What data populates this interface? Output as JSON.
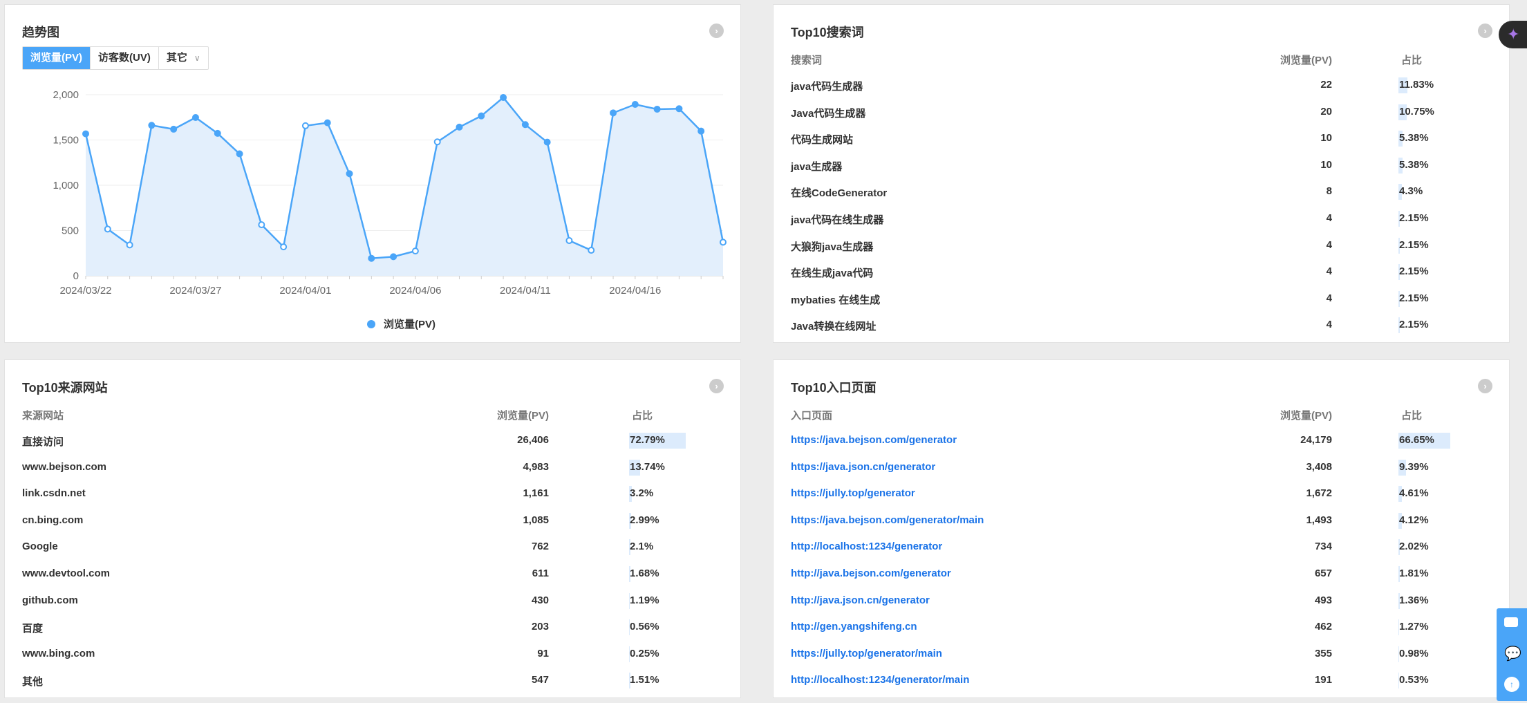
{
  "trend": {
    "title": "趋势图",
    "tabs": [
      {
        "label": "浏览量(PV)",
        "active": true
      },
      {
        "label": "访客数(UV)",
        "active": false
      },
      {
        "label": "其它",
        "active": false
      }
    ],
    "more_icon": "chevron-right-icon"
  },
  "chart_data": {
    "type": "area",
    "title": "",
    "xlabel": "",
    "ylabel": "",
    "ylim": [
      0,
      2000
    ],
    "yticks": [
      "0",
      "500",
      "1,000",
      "1,500",
      "2,000"
    ],
    "ytick_values": [
      0,
      500,
      1000,
      1500,
      2000
    ],
    "xtick_labels": [
      "2024/03/22",
      "2024/03/27",
      "2024/04/01",
      "2024/04/06",
      "2024/04/11",
      "2024/04/16"
    ],
    "grid": true,
    "legend_position": "bottom",
    "color": "#4aa5f8",
    "series": [
      {
        "name": "浏览量(PV)",
        "x": [
          "2024/03/22",
          "2024/03/23",
          "2024/03/24",
          "2024/03/25",
          "2024/03/26",
          "2024/03/27",
          "2024/03/28",
          "2024/03/29",
          "2024/03/30",
          "2024/03/31",
          "2024/04/01",
          "2024/04/02",
          "2024/04/03",
          "2024/04/04",
          "2024/04/05",
          "2024/04/06",
          "2024/04/07",
          "2024/04/08",
          "2024/04/09",
          "2024/04/10",
          "2024/04/11",
          "2024/04/12",
          "2024/04/13",
          "2024/04/14",
          "2024/04/15",
          "2024/04/16",
          "2024/04/17",
          "2024/04/18",
          "2024/04/19",
          "2024/04/20"
        ],
        "values": [
          1568,
          516,
          341,
          1662,
          1619,
          1748,
          1573,
          1347,
          564,
          320,
          1657,
          1690,
          1128,
          193,
          211,
          274,
          1479,
          1642,
          1766,
          1969,
          1670,
          1476,
          389,
          282,
          1799,
          1893,
          1840,
          1845,
          1598,
          371
        ],
        "hollow_markers": [
          "2024/03/23",
          "2024/03/24",
          "2024/03/30",
          "2024/03/31",
          "2024/04/01",
          "2024/04/06",
          "2024/04/07",
          "2024/04/13",
          "2024/04/14",
          "2024/04/20"
        ]
      }
    ]
  },
  "search_words": {
    "title": "Top10搜索词",
    "headers": {
      "name": "搜索词",
      "pv": "浏览量(PV)",
      "pct": "占比"
    },
    "rows": [
      {
        "name": "java代码生成器",
        "pv": "22",
        "pct": "11.83%",
        "pct_value": 11.83
      },
      {
        "name": "Java代码生成器",
        "pv": "20",
        "pct": "10.75%",
        "pct_value": 10.75
      },
      {
        "name": "代码生成网站",
        "pv": "10",
        "pct": "5.38%",
        "pct_value": 5.38
      },
      {
        "name": "java生成器",
        "pv": "10",
        "pct": "5.38%",
        "pct_value": 5.38
      },
      {
        "name": "在线CodeGenerator",
        "pv": "8",
        "pct": "4.3%",
        "pct_value": 4.3
      },
      {
        "name": "java代码在线生成器",
        "pv": "4",
        "pct": "2.15%",
        "pct_value": 2.15
      },
      {
        "name": "大狼狗java生成器",
        "pv": "4",
        "pct": "2.15%",
        "pct_value": 2.15
      },
      {
        "name": "在线生成java代码",
        "pv": "4",
        "pct": "2.15%",
        "pct_value": 2.15
      },
      {
        "name": "mybaties 在线生成",
        "pv": "4",
        "pct": "2.15%",
        "pct_value": 2.15
      },
      {
        "name": "Java转换在线网址",
        "pv": "4",
        "pct": "2.15%",
        "pct_value": 2.15
      }
    ]
  },
  "source_sites": {
    "title": "Top10来源网站",
    "headers": {
      "name": "来源网站",
      "pv": "浏览量(PV)",
      "pct": "占比"
    },
    "rows": [
      {
        "name": "直接访问",
        "pv": "26,406",
        "pct": "72.79%",
        "pct_value": 72.79
      },
      {
        "name": "www.bejson.com",
        "pv": "4,983",
        "pct": "13.74%",
        "pct_value": 13.74
      },
      {
        "name": "link.csdn.net",
        "pv": "1,161",
        "pct": "3.2%",
        "pct_value": 3.2
      },
      {
        "name": "cn.bing.com",
        "pv": "1,085",
        "pct": "2.99%",
        "pct_value": 2.99
      },
      {
        "name": "Google",
        "pv": "762",
        "pct": "2.1%",
        "pct_value": 2.1
      },
      {
        "name": "www.devtool.com",
        "pv": "611",
        "pct": "1.68%",
        "pct_value": 1.68
      },
      {
        "name": "github.com",
        "pv": "430",
        "pct": "1.19%",
        "pct_value": 1.19
      },
      {
        "name": "百度",
        "pv": "203",
        "pct": "0.56%",
        "pct_value": 0.56
      },
      {
        "name": "www.bing.com",
        "pv": "91",
        "pct": "0.25%",
        "pct_value": 0.25
      },
      {
        "name": "其他",
        "pv": "547",
        "pct": "1.51%",
        "pct_value": 1.51
      }
    ]
  },
  "entry_pages": {
    "title": "Top10入口页面",
    "headers": {
      "name": "入口页面",
      "pv": "浏览量(PV)",
      "pct": "占比"
    },
    "rows": [
      {
        "name": "https://java.bejson.com/generator",
        "pv": "24,179",
        "pct": "66.65%",
        "pct_value": 66.65
      },
      {
        "name": "https://java.json.cn/generator",
        "pv": "3,408",
        "pct": "9.39%",
        "pct_value": 9.39
      },
      {
        "name": "https://jully.top/generator",
        "pv": "1,672",
        "pct": "4.61%",
        "pct_value": 4.61
      },
      {
        "name": "https://java.bejson.com/generator/main",
        "pv": "1,493",
        "pct": "4.12%",
        "pct_value": 4.12
      },
      {
        "name": "http://localhost:1234/generator",
        "pv": "734",
        "pct": "2.02%",
        "pct_value": 2.02
      },
      {
        "name": "http://java.bejson.com/generator",
        "pv": "657",
        "pct": "1.81%",
        "pct_value": 1.81
      },
      {
        "name": "http://java.json.cn/generator",
        "pv": "493",
        "pct": "1.36%",
        "pct_value": 1.36
      },
      {
        "name": "http://gen.yangshifeng.cn",
        "pv": "462",
        "pct": "1.27%",
        "pct_value": 1.27
      },
      {
        "name": "https://jully.top/generator/main",
        "pv": "355",
        "pct": "0.98%",
        "pct_value": 0.98
      },
      {
        "name": "http://localhost:1234/generator/main",
        "pv": "191",
        "pct": "0.53%",
        "pct_value": 0.53
      }
    ]
  },
  "floating": {
    "ai_icon": "sparkle-icon",
    "tools": [
      "mail-icon",
      "wechat-icon",
      "back-to-top-icon"
    ],
    "accent": "#4aa5f8"
  }
}
